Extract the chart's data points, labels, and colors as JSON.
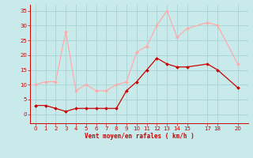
{
  "x": [
    0,
    1,
    2,
    3,
    4,
    5,
    6,
    7,
    8,
    9,
    10,
    11,
    12,
    13,
    14,
    15,
    17,
    18,
    20
  ],
  "y_moyen": [
    3,
    3,
    2,
    1,
    2,
    2,
    2,
    2,
    2,
    8,
    11,
    15,
    19,
    17,
    16,
    16,
    17,
    15,
    9
  ],
  "y_rafales": [
    10,
    11,
    11,
    28,
    8,
    10,
    8,
    8,
    10,
    11,
    21,
    23,
    30,
    35,
    26,
    29,
    31,
    30,
    17
  ],
  "color_moyen": "#cc0000",
  "color_rafales": "#ffaaaa",
  "bg_color": "#c8eaea",
  "grid_color": "#a8d4d4",
  "xlabel": "Vent moyen/en rafales ( km/h )",
  "xlabel_color": "#cc0000",
  "xticks": [
    0,
    1,
    2,
    3,
    4,
    5,
    6,
    7,
    8,
    9,
    10,
    11,
    12,
    13,
    14,
    15,
    17,
    18,
    20
  ],
  "yticks": [
    0,
    5,
    10,
    15,
    20,
    25,
    30,
    35
  ],
  "ylim": [
    -3,
    37
  ],
  "xlim": [
    -0.5,
    21.0
  ]
}
